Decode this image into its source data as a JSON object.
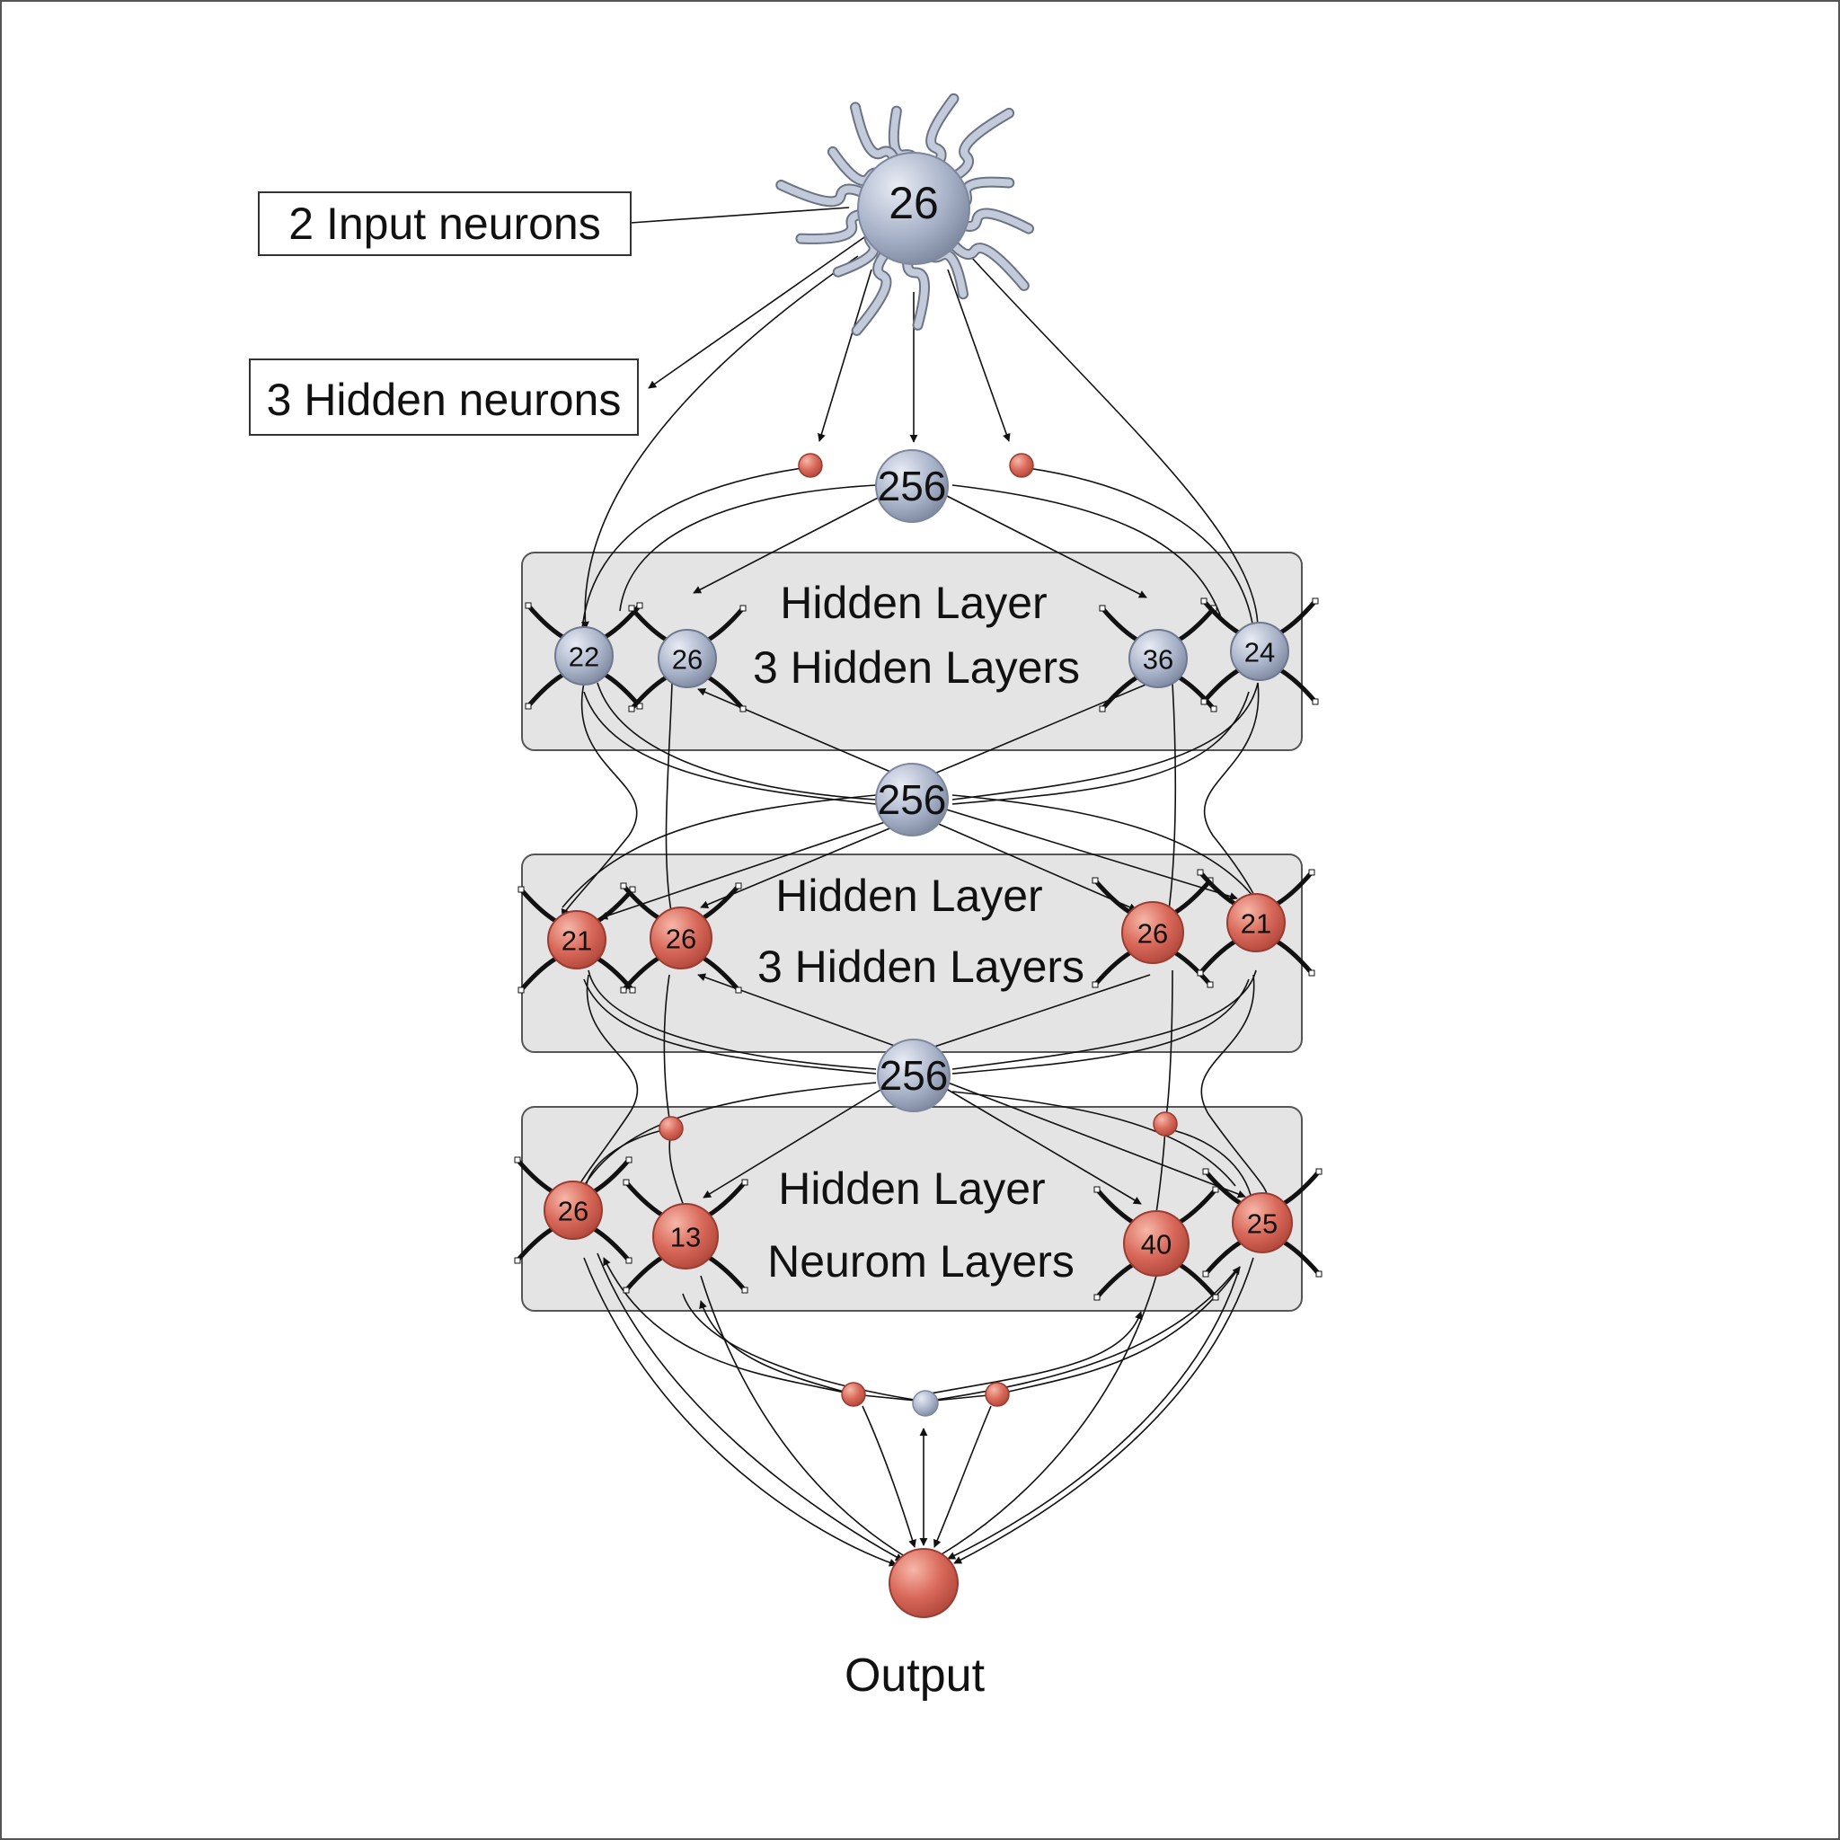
{
  "input_callout": "2 Input neurons",
  "hidden_callout": "3 Hidden neurons",
  "input_neuron": {
    "label": "26"
  },
  "hubs": [
    "256",
    "256",
    "256"
  ],
  "layers": [
    {
      "line1": "Hidden Layer",
      "line2": "3 Hidden Layers",
      "nodes": [
        "22",
        "26",
        "36",
        "24"
      ],
      "color": "blue"
    },
    {
      "line1": "Hidden Layer",
      "line2": "3 Hidden Layers",
      "nodes": [
        "21",
        "26",
        "26",
        "21"
      ],
      "color": "red"
    },
    {
      "line1": "Hidden Layer",
      "line2": "Neurom Layers",
      "nodes": [
        "26",
        "13",
        "40",
        "25"
      ],
      "color": "red"
    }
  ],
  "output_label": "Output",
  "colors": {
    "blue_node": "#a9b3c9",
    "red_node": "#d9695a",
    "panel": "#e4e4e4"
  }
}
